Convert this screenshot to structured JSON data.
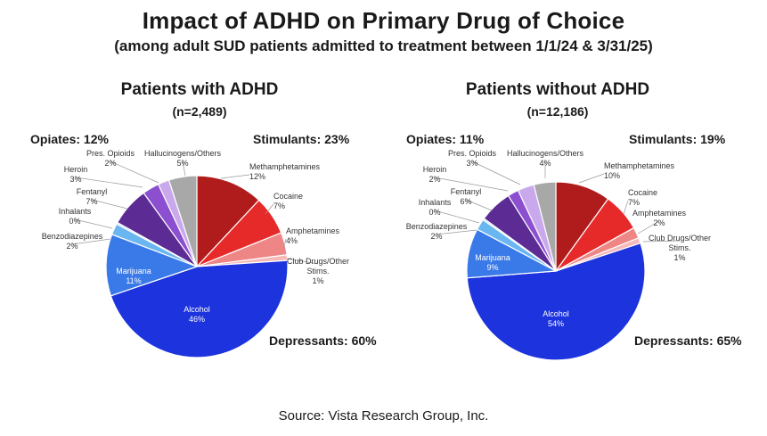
{
  "title": "Impact of ADHD on Primary Drug of Choice",
  "subtitle": "(among adult SUD patients admitted to treatment between 1/1/24 & 3/31/25)",
  "source": "Source:  Vista Research Group, Inc.",
  "chart_data": [
    {
      "type": "pie",
      "title": "Patients with ADHD",
      "subtitle": "(n=2,489)",
      "groups": {
        "opiates": "Opiates: 12%",
        "stimulants": "Stimulants: 23%",
        "depressants": "Depressants: 60%"
      },
      "slices": [
        {
          "name": "Methamphetamines",
          "label": "Methamphetamines",
          "pct_label": "12%",
          "value": 12,
          "color": "#b01c1c"
        },
        {
          "name": "Cocaine",
          "label": "Cocaine",
          "pct_label": "7%",
          "value": 7,
          "color": "#e62a2a"
        },
        {
          "name": "Amphetamines",
          "label": "Amphetamines",
          "pct_label": "4%",
          "value": 4,
          "color": "#ee8686"
        },
        {
          "name": "Club Drugs/Other Stims.",
          "label": "Club Drugs/Other",
          "label2": "Stims.",
          "pct_label": "1%",
          "value": 1,
          "color": "#f5b9b9"
        },
        {
          "name": "Alcohol",
          "label": "Alcohol",
          "pct_label": "46%",
          "value": 46,
          "color": "#1c33dd"
        },
        {
          "name": "Marijuana",
          "label": "Marijuana",
          "pct_label": "11%",
          "value": 11,
          "color": "#3a79e8"
        },
        {
          "name": "Benzodiazepines",
          "label": "Benzodiazepines",
          "pct_label": "2%",
          "value": 2,
          "color": "#6ab6f1"
        },
        {
          "name": "Inhalants",
          "label": "Inhalants",
          "pct_label": "0%",
          "value": 0.3,
          "color": "#a9d4f5"
        },
        {
          "name": "Fentanyl",
          "label": "Fentanyl",
          "pct_label": "7%",
          "value": 7,
          "color": "#5c2c94"
        },
        {
          "name": "Heroin",
          "label": "Heroin",
          "pct_label": "3%",
          "value": 3,
          "color": "#8b4fcf"
        },
        {
          "name": "Pres. Opioids",
          "label": "Pres. Opioids",
          "pct_label": "2%",
          "value": 2,
          "color": "#c9a9ec"
        },
        {
          "name": "Hallucinogens/Others",
          "label": "Hallucinogens/Others",
          "pct_label": "5%",
          "value": 5,
          "color": "#a8a8a8"
        }
      ]
    },
    {
      "type": "pie",
      "title": "Patients without ADHD",
      "subtitle": "(n=12,186)",
      "groups": {
        "opiates": "Opiates: 11%",
        "stimulants": "Stimulants: 19%",
        "depressants": "Depressants: 65%"
      },
      "slices": [
        {
          "name": "Methamphetamines",
          "label": "Methamphetamines",
          "pct_label": "10%",
          "value": 10,
          "color": "#b01c1c"
        },
        {
          "name": "Cocaine",
          "label": "Cocaine",
          "pct_label": "7%",
          "value": 7,
          "color": "#e62a2a"
        },
        {
          "name": "Amphetamines",
          "label": "Amphetamines",
          "pct_label": "2%",
          "value": 2,
          "color": "#ee8686"
        },
        {
          "name": "Club Drugs/Other Stims.",
          "label": "Club Drugs/Other",
          "label2": "Stims.",
          "pct_label": "1%",
          "value": 1,
          "color": "#f5b9b9"
        },
        {
          "name": "Alcohol",
          "label": "Alcohol",
          "pct_label": "54%",
          "value": 54,
          "color": "#1c33dd"
        },
        {
          "name": "Marijuana",
          "label": "Marijuana",
          "pct_label": "9%",
          "value": 9,
          "color": "#3a79e8"
        },
        {
          "name": "Benzodiazepines",
          "label": "Benzodiazepines",
          "pct_label": "2%",
          "value": 2,
          "color": "#6ab6f1"
        },
        {
          "name": "Inhalants",
          "label": "Inhalants",
          "pct_label": "0%",
          "value": 0.3,
          "color": "#a9d4f5"
        },
        {
          "name": "Fentanyl",
          "label": "Fentanyl",
          "pct_label": "6%",
          "value": 6,
          "color": "#5c2c94"
        },
        {
          "name": "Heroin",
          "label": "Heroin",
          "pct_label": "2%",
          "value": 2,
          "color": "#8b4fcf"
        },
        {
          "name": "Pres. Opioids",
          "label": "Pres. Opioids",
          "pct_label": "3%",
          "value": 3,
          "color": "#c9a9ec"
        },
        {
          "name": "Hallucinogens/Others",
          "label": "Hallucinogens/Others",
          "pct_label": "4%",
          "value": 4,
          "color": "#a8a8a8"
        }
      ]
    }
  ]
}
